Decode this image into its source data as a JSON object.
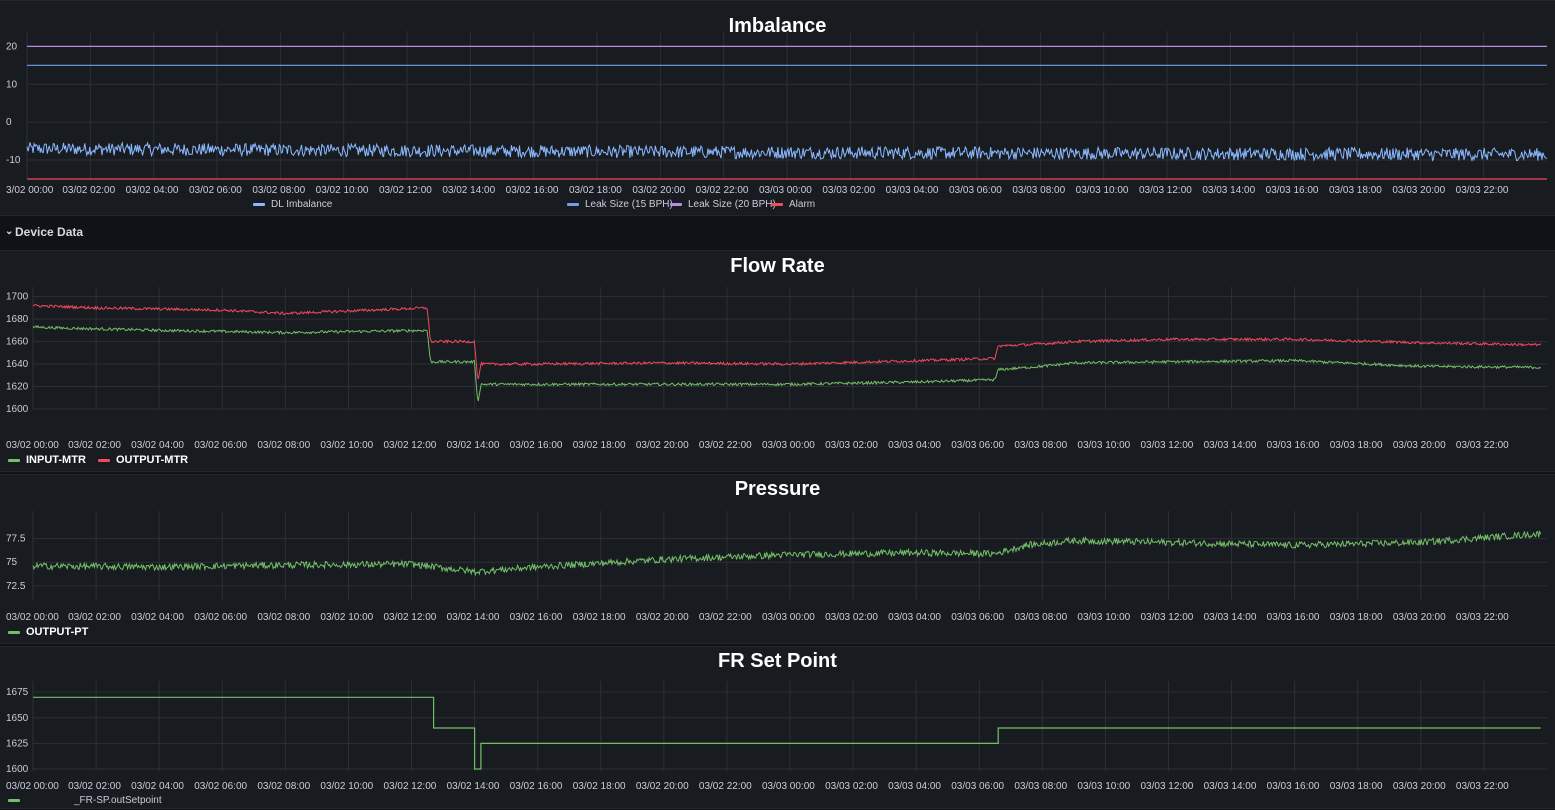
{
  "time_ticks": [
    "3/02 00:00",
    "03/02 02:00",
    "03/02 04:00",
    "03/02 06:00",
    "03/02 08:00",
    "03/02 10:00",
    "03/02 12:00",
    "03/02 14:00",
    "03/02 16:00",
    "03/02 18:00",
    "03/02 20:00",
    "03/02 22:00",
    "03/03 00:00",
    "03/03 02:00",
    "03/03 04:00",
    "03/03 06:00",
    "03/03 08:00",
    "03/03 10:00",
    "03/03 12:00",
    "03/03 14:00",
    "03/03 16:00",
    "03/03 18:00",
    "03/03 20:00",
    "03/03 22:00"
  ],
  "time_ticks_full": [
    "03/02 00:00",
    "03/02 02:00",
    "03/02 04:00",
    "03/02 06:00",
    "03/02 08:00",
    "03/02 10:00",
    "03/02 12:00",
    "03/02 14:00",
    "03/02 16:00",
    "03/02 18:00",
    "03/02 20:00",
    "03/02 22:00",
    "03/03 00:00",
    "03/03 02:00",
    "03/03 04:00",
    "03/03 06:00",
    "03/03 08:00",
    "03/03 10:00",
    "03/03 12:00",
    "03/03 14:00",
    "03/03 16:00",
    "03/03 18:00",
    "03/03 20:00",
    "03/03 22:00"
  ],
  "row": {
    "label": "Device Data"
  },
  "colors": {
    "blue": "#8ab8ff",
    "blue_line": "#73a1e8",
    "purple": "#b88ce0",
    "red": "#f2495c",
    "green": "#73bf69"
  },
  "chart_data": [
    {
      "type": "line",
      "title": "Imbalance",
      "x_range": [
        "03/02 00:00",
        "03/03 23:59"
      ],
      "ylim": [
        -15,
        23
      ],
      "yticks": [
        "20",
        "10",
        "0",
        "-10"
      ],
      "series": [
        {
          "name": "DL Imbalance",
          "color": "#8ab8ff",
          "x": [
            0,
            12,
            24,
            36,
            48
          ],
          "values": [
            -7,
            -7.5,
            -8,
            -8.3,
            -8.5
          ]
        },
        {
          "name": "Leak Size (15 BPH)",
          "color": "#73a1e8",
          "x": [
            0,
            48
          ],
          "values": [
            15,
            15
          ]
        },
        {
          "name": "Leak Size (20 BPH)",
          "color": "#b88ce0",
          "x": [
            0,
            48
          ],
          "values": [
            20,
            20
          ]
        },
        {
          "name": "Alarm",
          "color": "#f2495c",
          "x": [
            0,
            48
          ],
          "values": [
            -15,
            -15
          ]
        }
      ]
    },
    {
      "type": "line",
      "title": "Flow Rate",
      "x_range": [
        "03/02 00:00",
        "03/03 23:59"
      ],
      "ylim": [
        1600,
        1705
      ],
      "yticks": [
        "1700",
        "1680",
        "1660",
        "1640",
        "1620",
        "1600"
      ],
      "series": [
        {
          "name": "INPUT-MTR",
          "color": "#73bf69",
          "x": [
            0,
            1,
            4,
            8,
            12.5,
            12.6,
            14,
            14.1,
            14.2,
            14.4,
            16,
            20,
            24,
            28,
            30.5,
            30.6,
            32,
            33,
            36,
            40,
            44,
            47.8
          ],
          "values": [
            1673,
            1672,
            1670,
            1668,
            1670,
            1642,
            1642,
            1605,
            1622,
            1622,
            1622,
            1622,
            1622,
            1624,
            1626,
            1635,
            1638,
            1641,
            1642,
            1643,
            1638,
            1637
          ]
        },
        {
          "name": "OUTPUT-MTR",
          "color": "#f2495c",
          "x": [
            0,
            2,
            6,
            8,
            12.5,
            12.6,
            14,
            14.1,
            14.2,
            14.4,
            16,
            20,
            24,
            28,
            30.5,
            30.6,
            32,
            33,
            36,
            40,
            44,
            47.8
          ],
          "values": [
            1692,
            1690,
            1688,
            1685,
            1690,
            1660,
            1660,
            1624,
            1640,
            1640,
            1640,
            1641,
            1640,
            1643,
            1645,
            1656,
            1658,
            1660,
            1662,
            1662,
            1659,
            1657
          ]
        }
      ]
    },
    {
      "type": "line",
      "title": "Pressure",
      "x_range": [
        "03/02 00:00",
        "03/03 23:59"
      ],
      "ylim": [
        71,
        80
      ],
      "yticks": [
        "77.5",
        "75",
        "72.5"
      ],
      "series": [
        {
          "name": "OUTPUT-PT",
          "color": "#73bf69",
          "x": [
            0,
            4,
            8,
            12,
            14,
            16,
            20,
            24,
            28,
            30.5,
            31.5,
            33,
            36,
            40,
            44,
            46,
            47.8
          ],
          "values": [
            74.6,
            74.5,
            74.7,
            74.8,
            74,
            74.5,
            75.3,
            75.8,
            76,
            75.9,
            76.8,
            77.3,
            77.1,
            76.8,
            77.1,
            77.6,
            78
          ]
        }
      ]
    },
    {
      "type": "line",
      "title": "FR Set Point",
      "x_range": [
        "03/02 00:00",
        "03/03 23:59"
      ],
      "ylim": [
        1598,
        1682
      ],
      "yticks": [
        "1675",
        "1650",
        "1625",
        "1600"
      ],
      "series": [
        {
          "name": "_FR-SP.outSetpoint",
          "color": "#73bf69",
          "x": [
            0,
            12.7,
            12.7,
            14.0,
            14.0,
            14.2,
            14.2,
            30.6,
            30.6,
            47.8
          ],
          "values": [
            1670,
            1670,
            1640,
            1640,
            1600,
            1600,
            1625,
            1625,
            1640,
            1640
          ]
        }
      ]
    }
  ]
}
